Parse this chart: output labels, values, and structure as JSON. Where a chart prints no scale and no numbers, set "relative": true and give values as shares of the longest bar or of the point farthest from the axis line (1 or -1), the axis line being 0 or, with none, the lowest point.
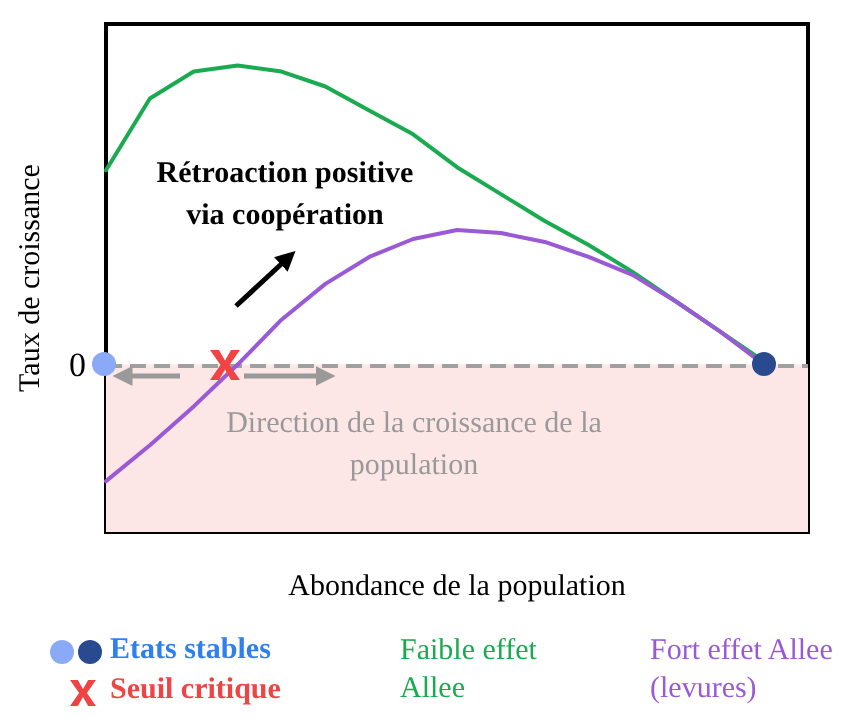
{
  "chart_data": {
    "type": "line",
    "relative": true,
    "xlabel": "Abondance de la population",
    "ylabel": "Taux de croissance",
    "categories": [
      null,
      null,
      null,
      null,
      null,
      null,
      null,
      null,
      null,
      null,
      null,
      null,
      null,
      null,
      null,
      null,
      null
    ],
    "series": [
      {
        "name": "Faible effet Allee",
        "color": "#1aaa50",
        "values": [
          0.65,
          0.89,
          0.98,
          1.0,
          0.98,
          0.93,
          0.85,
          0.77,
          0.66,
          0.57,
          0.48,
          0.4,
          0.31,
          0.21,
          0.11,
          0.01,
          null
        ]
      },
      {
        "name": "Fort effet Allee (levures)",
        "color": "#9a5ad6",
        "values": [
          -0.39,
          -0.27,
          -0.14,
          0.0,
          0.15,
          0.27,
          0.36,
          0.42,
          0.45,
          0.44,
          0.41,
          0.36,
          0.3,
          0.21,
          0.11,
          0.0,
          null
        ]
      }
    ],
    "marker": "none",
    "line_style": "solid",
    "grid": false,
    "legend": "bottom",
    "ref_lines": [
      {
        "axis": "y",
        "value": 0,
        "label": "0",
        "color": "#a0a0a0",
        "line_style": "dashed"
      }
    ],
    "bands": [
      {
        "axis": "y",
        "from": -0.56,
        "to": 0,
        "color": "#fde6e6"
      }
    ],
    "annotations": [
      "Rétroaction positive\nvia coopération",
      "Direction de la croissance de la population",
      "Etats stables",
      "Seuil critique"
    ]
  }
}
